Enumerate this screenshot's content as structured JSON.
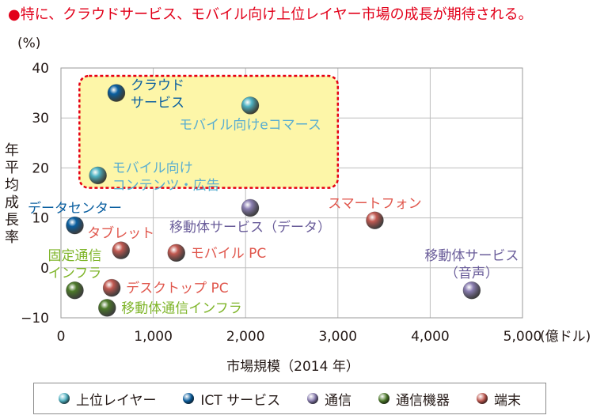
{
  "headline": "●特に、クラウドサービス、モバイル向け上位レイヤー市場の成長が期待される。",
  "colors": {
    "upper_layer": "#4fb3c4",
    "ict_service": "#0a5fa0",
    "telecom": "#8b7fb2",
    "telecom_equipment": "#4d7a2a",
    "terminal": "#c25a52",
    "highlight_fill": "#fdf6a8",
    "highlight_border": "#e60012",
    "upper_layer_label": "#5aaed0",
    "ict_label": "#0a5fa0",
    "telecom_label": "#6a5d9a",
    "telecom_equipment_label": "#7fb52a",
    "terminal_label": "#e0564c"
  },
  "chart_data": {
    "type": "scatter",
    "xlabel": "市場規模（2014 年）",
    "ylabel": "年平均成長率",
    "y_unit": "(%)",
    "x_unit": "(億ドル)",
    "xlim": [
      0,
      5000
    ],
    "ylim": [
      -10,
      40
    ],
    "x_ticks": [
      {
        "value": 0,
        "label": "0"
      },
      {
        "value": 1000,
        "label": "1,000"
      },
      {
        "value": 2000,
        "label": "2,000"
      },
      {
        "value": 3000,
        "label": "3,000"
      },
      {
        "value": 4000,
        "label": "4,000"
      },
      {
        "value": 5000,
        "label": "5,000"
      }
    ],
    "y_ticks": [
      {
        "value": -10,
        "label": "−10"
      },
      {
        "value": 0,
        "label": "0"
      },
      {
        "value": 10,
        "label": "10"
      },
      {
        "value": 20,
        "label": "20"
      },
      {
        "value": 30,
        "label": "30"
      },
      {
        "value": 40,
        "label": "40"
      }
    ],
    "grid": true,
    "highlight_region": {
      "x": [
        200,
        3000
      ],
      "y": [
        16,
        40
      ]
    },
    "legend": {
      "position": "bottom",
      "entries": [
        {
          "key": "upper_layer",
          "label": "上位レイヤー"
        },
        {
          "key": "ict_service",
          "label": "ICT サービス"
        },
        {
          "key": "telecom",
          "label": "通信"
        },
        {
          "key": "telecom_equipment",
          "label": "通信機器"
        },
        {
          "key": "terminal",
          "label": "端末"
        }
      ]
    },
    "points": [
      {
        "category": "ict_service",
        "x": 600,
        "y": 35,
        "label_lines": [
          "クラウド",
          "サービス"
        ],
        "label_align": "left"
      },
      {
        "category": "upper_layer",
        "x": 2050,
        "y": 32.5,
        "label_lines": [
          "モバイル向けeコマース"
        ],
        "label_align": "below"
      },
      {
        "category": "upper_layer",
        "x": 400,
        "y": 18.5,
        "label_lines": [
          "モバイル向け",
          "コンテンツ・広告"
        ],
        "label_align": "left"
      },
      {
        "category": "ict_service",
        "x": 150,
        "y": 8.5,
        "label_lines": [
          "データセンター"
        ],
        "label_align": "above"
      },
      {
        "category": "telecom",
        "x": 2050,
        "y": 12,
        "label_lines": [
          "移動体サービス（データ）"
        ],
        "label_align": "below"
      },
      {
        "category": "terminal",
        "x": 3400,
        "y": 9.5,
        "label_lines": [
          "スマートフォン"
        ],
        "label_align": "above"
      },
      {
        "category": "telecom",
        "x": 4450,
        "y": -4.5,
        "label_lines": [
          "移動体サービス",
          "（音声）"
        ],
        "label_align": "above"
      },
      {
        "category": "terminal",
        "x": 650,
        "y": 3.5,
        "label_lines": [
          "タブレット"
        ],
        "label_align": "above"
      },
      {
        "category": "terminal",
        "x": 1250,
        "y": 3,
        "label_lines": [
          "モバイル PC"
        ],
        "label_align": "right"
      },
      {
        "category": "terminal",
        "x": 550,
        "y": -4,
        "label_lines": [
          "デスクトップ PC"
        ],
        "label_align": "right"
      },
      {
        "category": "telecom_equipment",
        "x": 150,
        "y": -4.5,
        "label_lines": [
          "固定通信",
          "インフラ"
        ],
        "label_align": "above"
      },
      {
        "category": "telecom_equipment",
        "x": 500,
        "y": -8,
        "label_lines": [
          "移動体通信インフラ"
        ],
        "label_align": "right"
      }
    ]
  }
}
